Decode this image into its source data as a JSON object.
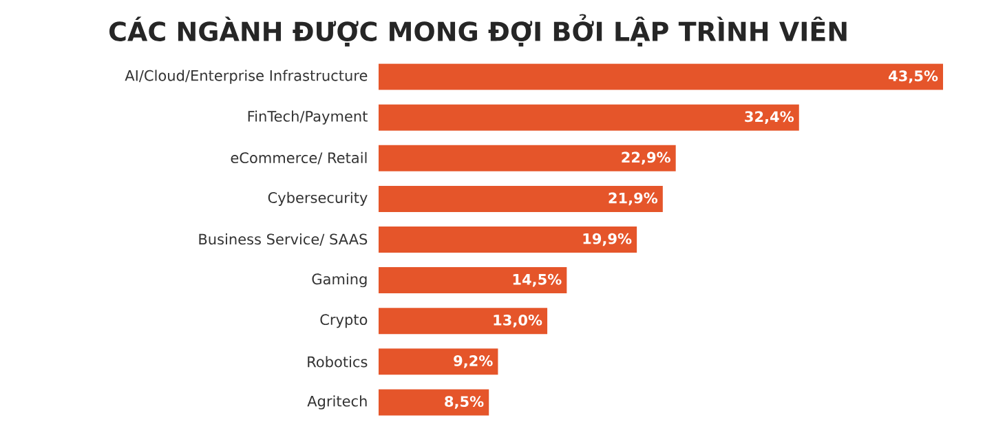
{
  "chart_data": {
    "type": "bar",
    "orientation": "horizontal",
    "title": "CÁC NGÀNH ĐƯỢC MONG ĐỢI BỞI LẬP TRÌNH VIÊN",
    "categories": [
      "AI/Cloud/Enterprise Infrastructure",
      "FinTech/Payment",
      "eCommerce/ Retail",
      "Cybersecurity",
      "Business Service/ SAAS",
      "Gaming",
      "Crypto",
      "Robotics",
      "Agritech"
    ],
    "values": [
      43.5,
      32.4,
      22.9,
      21.9,
      19.9,
      14.5,
      13.0,
      9.2,
      8.5
    ],
    "value_labels": [
      "43,5%",
      "32,4%",
      "22,9%",
      "21,9%",
      "19,9%",
      "14,5%",
      "13,0%",
      "9,2%",
      "8,5%"
    ],
    "color": "#e5552a"
  }
}
